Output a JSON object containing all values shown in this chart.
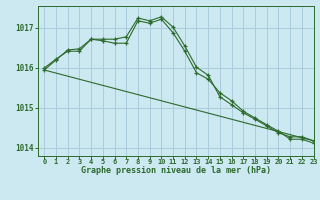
{
  "background_color": "#cce8f0",
  "grid_color": "#aaccdd",
  "line_color": "#2d6a2d",
  "title": "Graphe pression niveau de la mer (hPa)",
  "xlim": [
    -0.5,
    23
  ],
  "ylim": [
    1013.8,
    1017.55
  ],
  "yticks": [
    1014,
    1015,
    1016,
    1017
  ],
  "xticks": [
    0,
    1,
    2,
    3,
    4,
    5,
    6,
    7,
    8,
    9,
    10,
    11,
    12,
    13,
    14,
    15,
    16,
    17,
    18,
    19,
    20,
    21,
    22,
    23
  ],
  "series_linear": {
    "x": [
      0,
      23
    ],
    "y": [
      1015.95,
      1014.18
    ]
  },
  "series2": {
    "x": [
      0,
      1,
      2,
      3,
      4,
      5,
      6,
      7,
      8,
      9,
      10,
      11,
      12,
      13,
      14,
      15,
      16,
      17,
      18,
      19,
      20,
      21,
      22,
      23
    ],
    "y": [
      1015.95,
      1016.2,
      1016.45,
      1016.48,
      1016.72,
      1016.72,
      1016.72,
      1016.78,
      1017.25,
      1017.18,
      1017.28,
      1017.02,
      1016.55,
      1016.02,
      1015.82,
      1015.28,
      1015.08,
      1014.88,
      1014.72,
      1014.55,
      1014.38,
      1014.28,
      1014.28,
      1014.18
    ]
  },
  "series3": {
    "x": [
      0,
      1,
      2,
      3,
      4,
      5,
      6,
      7,
      8,
      9,
      10,
      11,
      12,
      13,
      14,
      15,
      16,
      17,
      18,
      19,
      20,
      21,
      22,
      23
    ],
    "y": [
      1016.0,
      1016.22,
      1016.42,
      1016.42,
      1016.72,
      1016.68,
      1016.62,
      1016.62,
      1017.18,
      1017.12,
      1017.22,
      1016.88,
      1016.42,
      1015.88,
      1015.72,
      1015.38,
      1015.18,
      1014.92,
      1014.75,
      1014.58,
      1014.42,
      1014.22,
      1014.22,
      1014.12
    ]
  }
}
